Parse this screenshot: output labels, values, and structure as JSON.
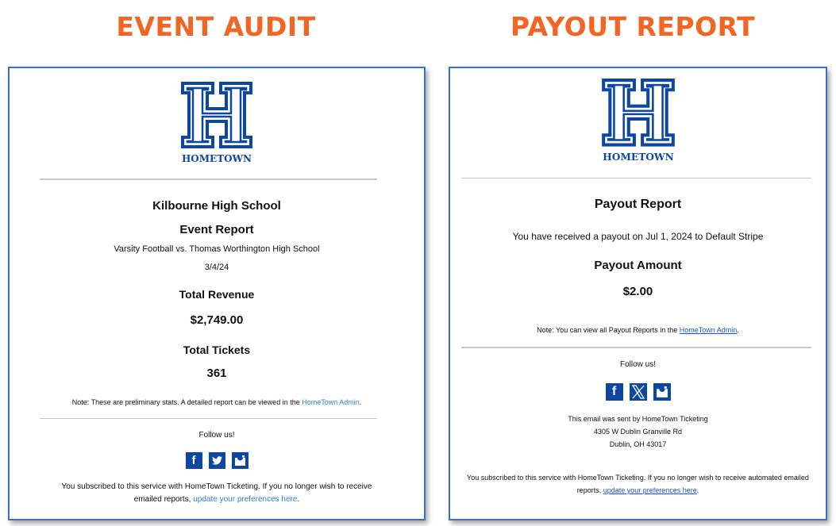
{
  "headings": {
    "left": "EVENT AUDIT",
    "right": "PAYOUT REPORT"
  },
  "colors": {
    "heading": "#f26522",
    "brand": "#0d47a1",
    "link": "#2f80d9"
  },
  "logo": {
    "text": "HOMETOWN"
  },
  "event_audit": {
    "school": "Kilbourne High School",
    "title": "Event Report",
    "event": "Varsity Football vs. Thomas Worthington High School",
    "date": "3/4/24",
    "revenue_label": "Total Revenue",
    "revenue": "$2,749.00",
    "tickets_label": "Total Tickets",
    "tickets": "361",
    "note": "Note: These are preliminary stats. A detailed report can be viewed in the ",
    "note_link": "HomeTown Admin",
    "note_end": ".",
    "follow": "Follow us!",
    "social": [
      "facebook-icon",
      "twitter-icon",
      "instagram-icon"
    ],
    "subscribe_1": "You subscribed to this service with HomeTown Ticketing. If you no longer wish to receive",
    "subscribe_2": "emailed reports, ",
    "subscribe_link": "update your preferences here",
    "subscribe_end": "."
  },
  "payout_report": {
    "title": "Payout Report",
    "message": "You have received a payout on Jul 1, 2024 to Default Stripe",
    "amount_label": "Payout Amount",
    "amount": "$2.00",
    "note": "Note: You can view all Payout Reports in the ",
    "note_link": "HomeTown Admin",
    "note_end": ".",
    "follow": "Follow us!",
    "social": [
      "facebook-icon",
      "x-icon",
      "instagram-icon"
    ],
    "sent_by": "This email was sent by HomeTown Ticketing",
    "address_1": "4305 W Dublin Granville Rd",
    "address_2": "Dublin, OH 43017",
    "subscribe_1": "You subscribed to this service with HomeTown Ticketing. If you no longer wish to receive automated emailed",
    "subscribe_2": "reports, ",
    "subscribe_link": "update your preferences here",
    "subscribe_end": "."
  }
}
